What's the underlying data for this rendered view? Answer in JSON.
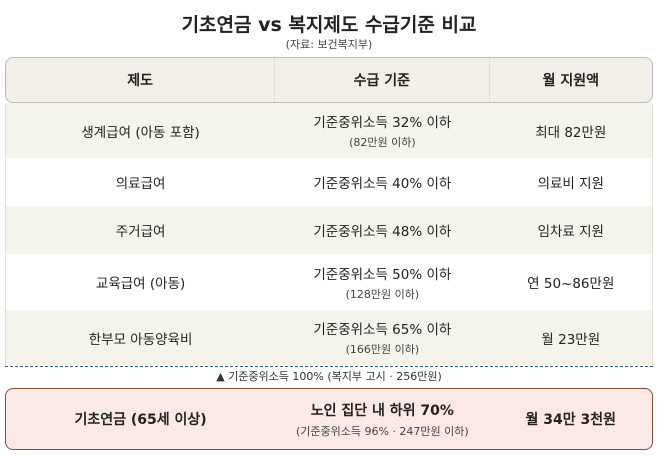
{
  "title": "기초연금 vs 복지제도 수급기준 비교",
  "subtitle": "(자료: 보건복지부)",
  "headers": [
    "제도",
    "수급 기준",
    "월 지원액"
  ],
  "rows": [
    {
      "program": "생계급여 (아동 포함)",
      "criteria": "기준중위소득 32% 이하",
      "criteria_sub": "(82만원 이하)",
      "amount": "최대 82만원"
    },
    {
      "program": "의료급여",
      "criteria": "기준중위소득 40% 이하",
      "criteria_sub": "",
      "amount": "의료비 지원"
    },
    {
      "program": "주거급여",
      "criteria": "기준중위소득 48% 이하",
      "criteria_sub": "",
      "amount": "임차료 지원"
    },
    {
      "program": "교육급여 (아동)",
      "criteria": "기준중위소득 50% 이하",
      "criteria_sub": "(128만원 이하)",
      "amount": "연 50~86만원"
    },
    {
      "program": "한부모 아동양육비",
      "criteria": "기준중위소득 65% 이하",
      "criteria_sub": "(166만원 이하)",
      "amount": "월 23만원"
    }
  ],
  "threshold_note": "▲ 기준중위소득 100% (복지부 고시 · 256만원)",
  "highlight": {
    "program": "기초연금 (65세 이상)",
    "criteria": "노인 집단 내 하위 70%",
    "criteria_sub": "(기준중위소득 96% · 247만원 이하)",
    "amount": "월 34만 3천원"
  },
  "colors": {
    "header_bg": "#f1efe8",
    "row_alt_bg": "#f4f3ec",
    "highlight_bg": "#fbe9e5",
    "highlight_border": "#8b4a3a",
    "threshold_line": "#2f5a8a"
  }
}
